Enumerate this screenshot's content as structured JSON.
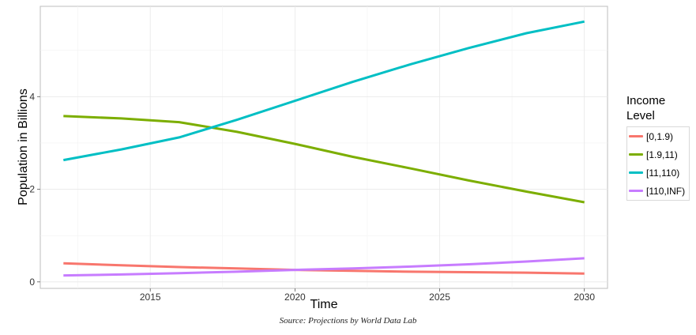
{
  "chart_data": {
    "type": "line",
    "xlabel": "Time",
    "ylabel": "Population in Billions",
    "xlim": [
      2011.2,
      2030.8
    ],
    "ylim": [
      -0.14,
      5.95
    ],
    "x_ticks": [
      2015,
      2020,
      2025,
      2030
    ],
    "y_ticks": [
      0,
      2,
      4
    ],
    "grid": true,
    "legend_placement": "right",
    "legend_title": "Income\nLevel",
    "source": "Source: Projections by World Data Lab",
    "x": [
      2012,
      2014,
      2016,
      2018,
      2020,
      2022,
      2024,
      2026,
      2028,
      2030
    ],
    "series": [
      {
        "name": "[0,1.9)",
        "color": "#F8766D",
        "values": [
          0.4,
          0.36,
          0.32,
          0.29,
          0.26,
          0.24,
          0.22,
          0.21,
          0.2,
          0.18
        ]
      },
      {
        "name": "[1.9,11)",
        "color": "#7CAE00",
        "values": [
          3.58,
          3.53,
          3.45,
          3.24,
          2.98,
          2.7,
          2.45,
          2.19,
          1.95,
          1.72
        ]
      },
      {
        "name": "[11,110)",
        "color": "#00BFC4",
        "values": [
          2.63,
          2.86,
          3.12,
          3.5,
          3.91,
          4.32,
          4.7,
          5.05,
          5.37,
          5.62
        ]
      },
      {
        "name": "[110,INF)",
        "color": "#C77CFF",
        "values": [
          0.14,
          0.16,
          0.19,
          0.22,
          0.26,
          0.29,
          0.33,
          0.38,
          0.44,
          0.51
        ]
      }
    ]
  }
}
